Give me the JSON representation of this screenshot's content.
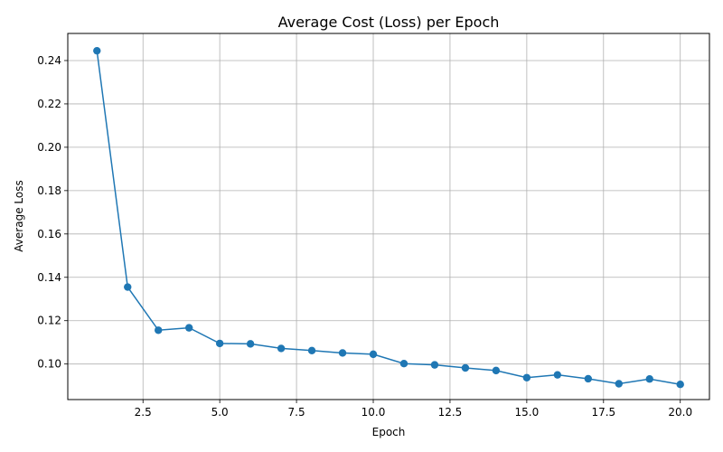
{
  "chart_data": {
    "type": "line",
    "title": "Average Cost (Loss) per Epoch",
    "xlabel": "Epoch",
    "ylabel": "Average Loss",
    "xlim": [
      0.05,
      20.95
    ],
    "ylim": [
      0.0836,
      0.2525
    ],
    "xticks": [
      2.5,
      5.0,
      7.5,
      10.0,
      12.5,
      15.0,
      17.5,
      20.0
    ],
    "xtick_labels": [
      "2.5",
      "5.0",
      "7.5",
      "10.0",
      "12.5",
      "15.0",
      "17.5",
      "20.0"
    ],
    "yticks": [
      0.1,
      0.12,
      0.14,
      0.16,
      0.18,
      0.2,
      0.22,
      0.24
    ],
    "ytick_labels": [
      "0.10",
      "0.12",
      "0.14",
      "0.16",
      "0.18",
      "0.20",
      "0.22",
      "0.24"
    ],
    "grid": true,
    "series": [
      {
        "color": "#1f77b4",
        "marker": "circle",
        "x": [
          1,
          2,
          3,
          4,
          5,
          6,
          7,
          8,
          9,
          10,
          11,
          12,
          13,
          14,
          15,
          16,
          17,
          18,
          19,
          20
        ],
        "values": [
          0.2445,
          0.1355,
          0.1156,
          0.1167,
          0.1095,
          0.1093,
          0.1072,
          0.1062,
          0.1051,
          0.1045,
          0.1002,
          0.0996,
          0.0982,
          0.097,
          0.0937,
          0.095,
          0.0932,
          0.0909,
          0.0931,
          0.0906
        ]
      }
    ]
  }
}
